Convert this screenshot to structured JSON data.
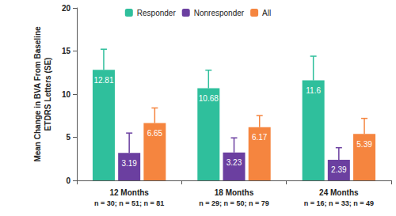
{
  "chart_data": {
    "type": "bar",
    "y_label": "Mean Change in BVA From Baseline\nETDRS Letters (SE)",
    "categories": [
      "12 Months\nn = 30; n = 51; n = 81",
      "18 Months\nn = 29; n = 50; n = 79",
      "24 Months\nn = 16; n = 33; n = 49"
    ],
    "series": [
      {
        "name": "Responder",
        "color": "#2fbf9c",
        "values": [
          12.81,
          10.68,
          11.6
        ],
        "se": [
          2.4,
          2.1,
          2.8
        ]
      },
      {
        "name": "Nonresponder",
        "color": "#6b3fa0",
        "values": [
          3.19,
          3.23,
          2.39
        ],
        "se": [
          2.3,
          1.7,
          1.4
        ]
      },
      {
        "name": "All",
        "color": "#f5853f",
        "values": [
          6.65,
          6.17,
          5.39
        ],
        "se": [
          1.75,
          1.35,
          1.8
        ]
      }
    ],
    "ylim": [
      0,
      20
    ],
    "yticks": [
      0,
      5,
      10,
      15,
      20
    ],
    "grid": false,
    "legend": "top",
    "data_labels": true
  }
}
